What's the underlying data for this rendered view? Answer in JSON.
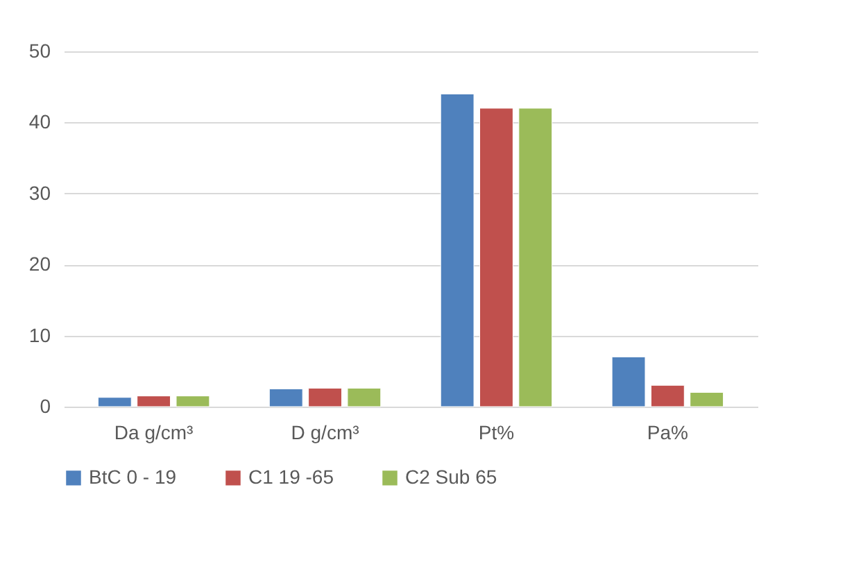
{
  "chart_data": {
    "type": "bar",
    "categories": [
      "Da g/cm³",
      "D g/cm³",
      "Pt%",
      "Pa%"
    ],
    "series": [
      {
        "name": "BtC 0 - 19",
        "color": "#4f81bd",
        "values": [
          1.3,
          2.5,
          44,
          7
        ]
      },
      {
        "name": "C1 19 -65",
        "color": "#c0504d",
        "values": [
          1.5,
          2.6,
          42,
          3
        ]
      },
      {
        "name": "C2 Sub 65",
        "color": "#9bbb59",
        "values": [
          1.5,
          2.6,
          42,
          2
        ]
      }
    ],
    "ylim": [
      0,
      50
    ],
    "yticks": [
      0,
      10,
      20,
      30,
      40,
      50
    ],
    "grid": "y",
    "legend": "bottom"
  }
}
